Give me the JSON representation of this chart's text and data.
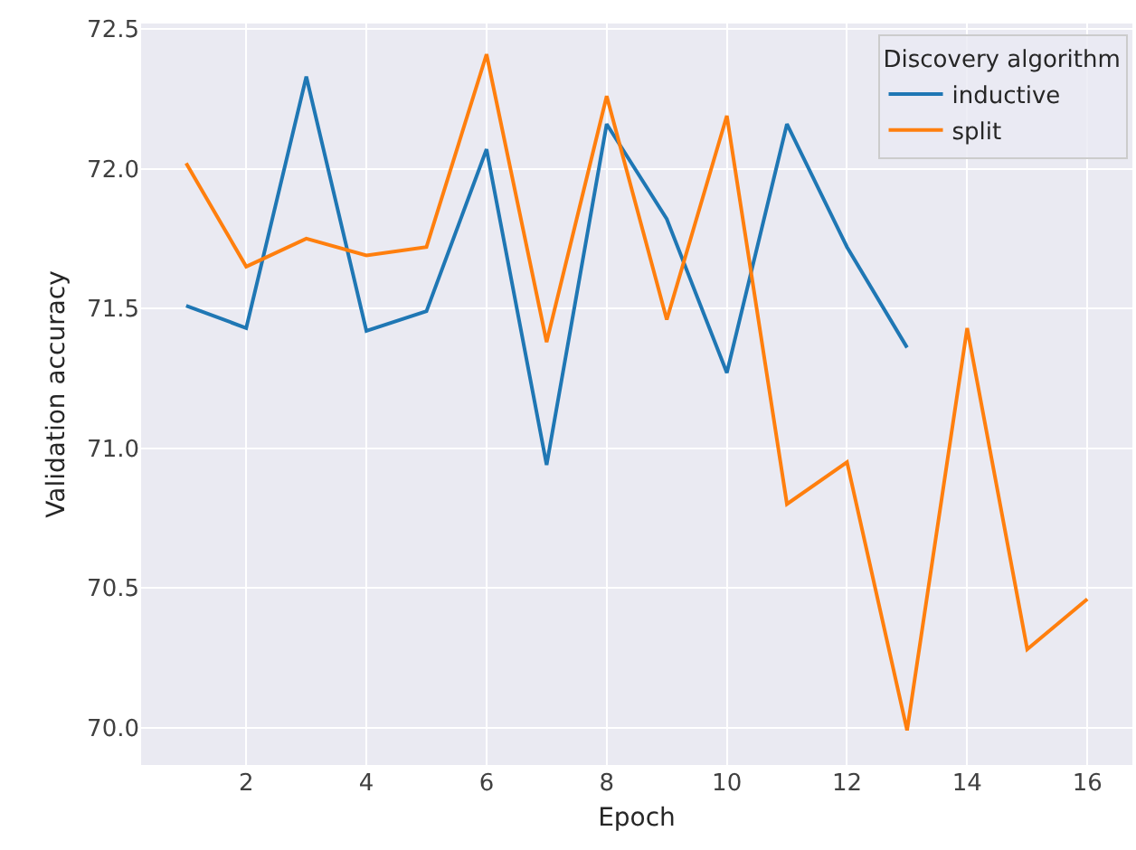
{
  "chart_data": {
    "type": "line",
    "xlabel": "Epoch",
    "ylabel": "Validation accuracy",
    "legend_title": "Discovery algorithm",
    "x": [
      1,
      2,
      3,
      4,
      5,
      6,
      7,
      8,
      9,
      10,
      11,
      12,
      13,
      14,
      15,
      16
    ],
    "series": [
      {
        "name": "inductive",
        "color": "#1f77b4",
        "x": [
          1,
          2,
          3,
          4,
          5,
          6,
          7,
          8,
          9,
          10,
          11,
          12,
          13
        ],
        "values": [
          71.51,
          71.43,
          72.33,
          71.42,
          71.49,
          72.07,
          70.94,
          72.16,
          71.82,
          71.27,
          72.16,
          71.72,
          71.36
        ]
      },
      {
        "name": "split",
        "color": "#ff7f0e",
        "values": [
          72.02,
          71.65,
          71.75,
          71.69,
          71.72,
          72.41,
          71.38,
          72.26,
          71.46,
          72.19,
          70.8,
          70.95,
          69.99,
          71.43,
          70.28,
          70.46
        ]
      }
    ],
    "xlim": [
      0.25,
      16.75
    ],
    "xticks": [
      2,
      4,
      6,
      8,
      10,
      12,
      14,
      16
    ],
    "ylim": [
      69.866,
      72.52
    ],
    "yticks": [
      {
        "value": 70,
        "label": "70.0"
      },
      70.5,
      {
        "value": 71,
        "label": "71.0"
      },
      71.5,
      {
        "value": 72,
        "label": "72.0"
      },
      72.5
    ],
    "grid": true,
    "legend": "top right",
    "marker": "none",
    "line_style": "solid"
  }
}
